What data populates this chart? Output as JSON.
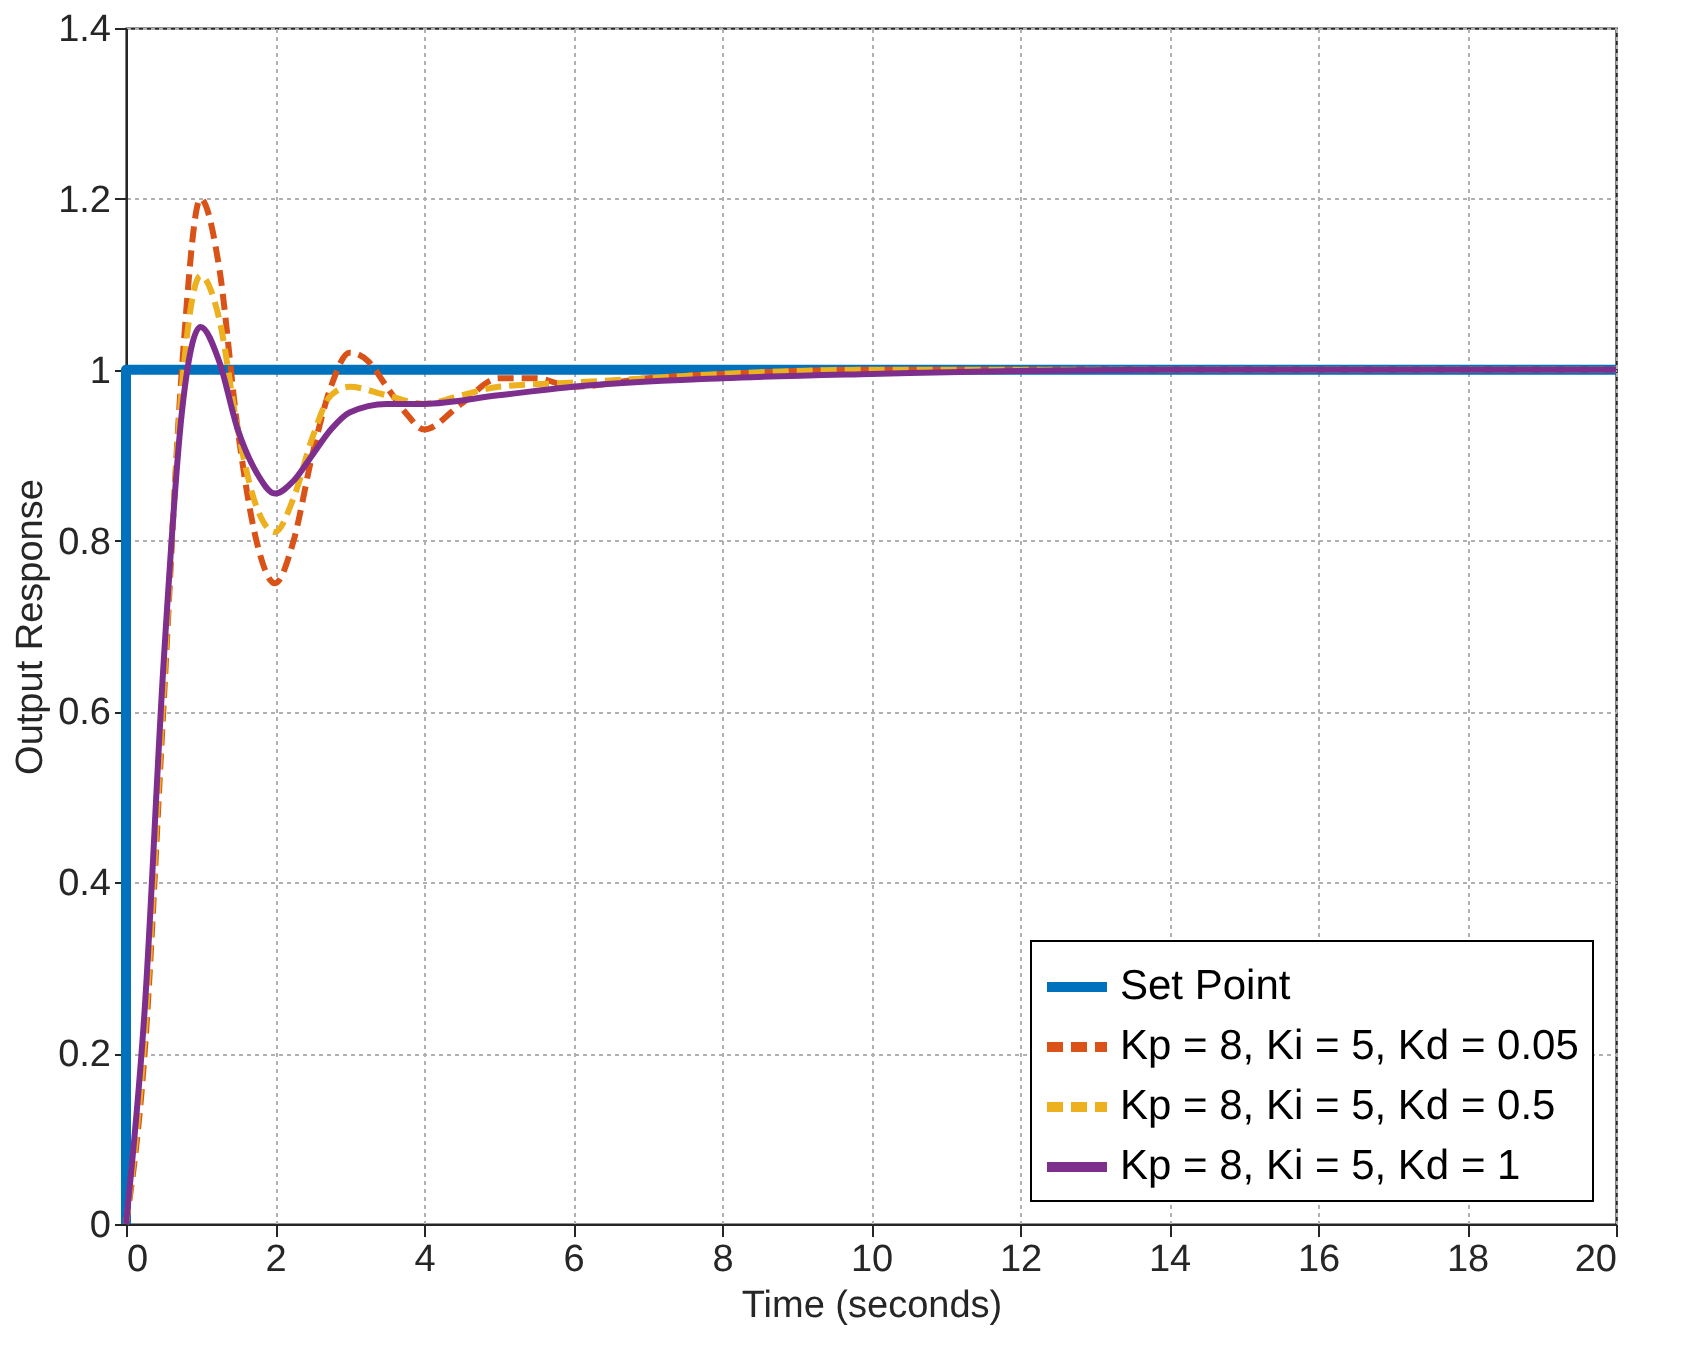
{
  "chart_data": {
    "type": "line",
    "xlabel": "Time (seconds)",
    "ylabel": "Output Response",
    "xlim": [
      0,
      20
    ],
    "xticks": [
      0,
      2,
      4,
      6,
      8,
      10,
      12,
      14,
      16,
      18,
      20
    ],
    "ylim": [
      0,
      1.4
    ],
    "yticks": [
      0,
      0.2,
      0.4,
      0.6,
      0.8,
      1,
      1.2,
      1.4
    ],
    "grid": true,
    "legend": "bottom right",
    "marker": "none",
    "series": [
      {
        "name": "Set Point",
        "color": "#0072bd",
        "line_style": "solid",
        "x": [
          0,
          0,
          20
        ],
        "values": [
          0,
          1,
          1
        ]
      },
      {
        "name": "Kp = 8, Ki = 5, Kd = 0.05",
        "color": "#d95319",
        "line_style": "dashed",
        "x": [
          0,
          0.25,
          0.5,
          0.75,
          1.0,
          1.25,
          1.5,
          1.75,
          2.0,
          2.25,
          2.5,
          2.75,
          3.0,
          3.25,
          3.5,
          3.75,
          4.0,
          4.5,
          5.0,
          5.5,
          6.0,
          7.0,
          8.0,
          10.0,
          14.0,
          20.0
        ],
        "values": [
          0,
          0.2,
          0.6,
          1.0,
          1.2,
          1.12,
          0.93,
          0.8,
          0.75,
          0.8,
          0.9,
          0.98,
          1.02,
          1.01,
          0.98,
          0.95,
          0.93,
          0.96,
          0.99,
          0.99,
          0.98,
          0.99,
          0.995,
          1.0,
          1.0,
          1.0
        ]
      },
      {
        "name": "Kp = 8, Ki = 5, Kd = 0.5",
        "color": "#edb120",
        "line_style": "dashed",
        "x": [
          0,
          0.25,
          0.5,
          0.75,
          1.0,
          1.25,
          1.5,
          1.75,
          2.0,
          2.25,
          2.5,
          2.75,
          3.0,
          3.5,
          4.0,
          4.5,
          5.0,
          6.0,
          7.0,
          8.0,
          10.0,
          14.0,
          20.0
        ],
        "values": [
          0,
          0.22,
          0.62,
          0.98,
          1.11,
          1.06,
          0.93,
          0.84,
          0.81,
          0.85,
          0.92,
          0.97,
          0.98,
          0.97,
          0.96,
          0.97,
          0.98,
          0.985,
          0.99,
          0.995,
          1.0,
          1.0,
          1.0
        ]
      },
      {
        "name": "Kp = 8, Ki = 5, Kd = 1",
        "color": "#7e2f8e",
        "line_style": "solid",
        "x": [
          0,
          0.25,
          0.5,
          0.75,
          1.0,
          1.25,
          1.5,
          1.75,
          2.0,
          2.25,
          2.5,
          2.75,
          3.0,
          3.5,
          4.0,
          5.0,
          6.0,
          8.0,
          10.0,
          14.0,
          20.0
        ],
        "values": [
          0,
          0.25,
          0.65,
          0.95,
          1.05,
          1.01,
          0.93,
          0.88,
          0.855,
          0.87,
          0.9,
          0.93,
          0.95,
          0.96,
          0.96,
          0.97,
          0.98,
          0.99,
          0.995,
          1.0,
          1.0
        ]
      }
    ]
  }
}
